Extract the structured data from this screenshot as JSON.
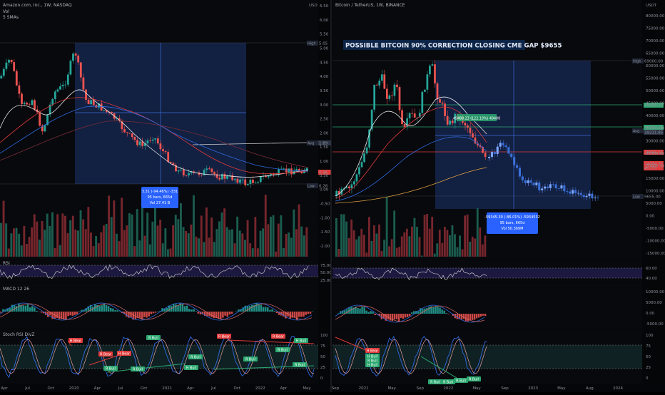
{
  "left_chart": {
    "symbol_line": "Amazon.com, Inc., 1W, NASDAQ",
    "vol_label": "Vol",
    "sma_label": "5 SMAs",
    "currency": "USD",
    "price_axis": [
      "6.50",
      "6.00",
      "5.50",
      "5.00",
      "4.50",
      "4.00",
      "3.50",
      "3.00",
      "2.50",
      "2.00",
      "1.50",
      "1.00",
      "0.50",
      "0.00",
      "-0.50",
      "-1.00",
      "-1.50",
      "-2.00"
    ],
    "tags": {
      "high_label": "High",
      "high_value": "5.05",
      "avg_label": "Avg",
      "avg_value": "1.89",
      "current_value": "0.96",
      "low_label": "Low",
      "low_value": "0.28"
    },
    "measure_box": [
      "3.31 (-94.46%) -331",
      "95 bars, 665d",
      "Vol 27.41 B"
    ],
    "time_axis": [
      "Apr",
      "Jul",
      "Oct",
      "2020",
      "Apr",
      "Jul",
      "Oct",
      "2021",
      "Apr",
      "Jul",
      "Oct",
      "2022",
      "Apr",
      "May"
    ],
    "rsi_label": "RSI",
    "rsi_axis": [
      "75.00",
      "50.00",
      "25.00"
    ],
    "macd_label": "MACD 12 26",
    "stoch_label": "Stoch RSI DivZ",
    "stoch_axis": [
      "100",
      "75",
      "50",
      "25",
      "0"
    ],
    "signals": [
      "H Bear",
      "R Bear",
      "R Bull",
      "H Bear",
      "R Bull",
      "R Bull",
      "H Bull",
      "R Bear",
      "R Bull",
      "R Bear",
      "R Bull",
      "R Bull",
      "R Bull",
      "H Bull"
    ]
  },
  "right_chart": {
    "symbol_line": "Bitcoin / TetherUS, 1W, BINANCE",
    "currency": "USDT",
    "title_banner": "POSSIBLE BITCOIN 90% CORRECTION CLOSING CME GAP $9655",
    "price_axis": [
      "80000.00",
      "75000.00",
      "70000.00",
      "65000.00",
      "60000.00",
      "55000.00",
      "50000.00",
      "45000.00",
      "40000.00",
      "35000.00",
      "30000.00",
      "25000.00",
      "20000.00",
      "15000.00",
      "10000.00",
      "5000.00",
      "0.00",
      "-5000.00",
      "-10000.00",
      "-15000.00"
    ],
    "tags": {
      "high_label": "High",
      "high_value": "69000.00",
      "level1": "49488.23",
      "level2": "40950.21",
      "avg_label": "Avg",
      "avg_value": "39231.85",
      "level3": "28865.11",
      "current_value": "24484.77",
      "current_sub": "4d 17h",
      "low_label": "Low",
      "low_value": "9655.00"
    },
    "green_box": "49488.23 (122.19%) 49488",
    "measure_box": [
      "-59345.30 (-86.01%) -5934532",
      "95 bars, 665d",
      "Vol 50.369M"
    ],
    "time_axis": [
      "Sep",
      "2021",
      "May",
      "Sep",
      "2022",
      "May",
      "Sep",
      "2023",
      "May",
      "Aug",
      "2024"
    ],
    "rsi_axis": [
      "60.00",
      "40.00"
    ],
    "macd_axis": [
      "10000.00",
      "5000.00",
      "0.00",
      "-5000.00"
    ],
    "stoch_axis": [
      "100",
      "75",
      "50",
      "25",
      "0"
    ],
    "signals": [
      "R Bull",
      "H Bear",
      "H Bull",
      "H Bull",
      "R Bull",
      "R Bull",
      "R Bull",
      "R Bull"
    ]
  }
}
